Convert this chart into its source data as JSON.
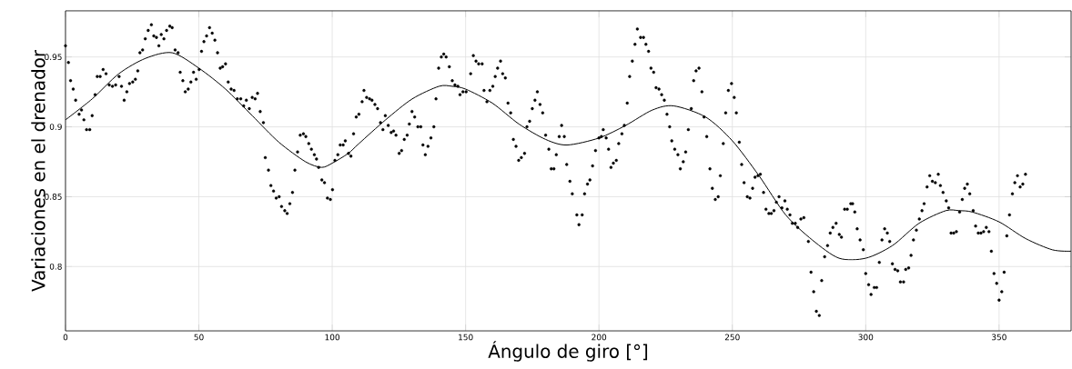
{
  "chart_data": {
    "type": "scatter",
    "xlabel": "Ángulo de giro [°]",
    "ylabel": "Variaciones en el drenador",
    "xlim": [
      0,
      377
    ],
    "ylim": [
      0.754,
      0.983
    ],
    "xticks": [
      0,
      50,
      100,
      150,
      200,
      250,
      300,
      350
    ],
    "yticks": [
      0.8,
      0.85,
      0.9,
      0.95
    ],
    "grid": true,
    "marker": "circle",
    "series": [
      {
        "color": "#000000",
        "x": [
          0,
          1.1,
          1.9,
          2.9,
          3.8,
          5.1,
          6,
          6.9,
          7.9,
          9.1,
          10,
          11.1,
          11.9,
          13,
          14.1,
          15.2,
          16.4,
          17.6,
          18.8,
          20.1,
          21,
          22,
          23,
          24,
          25.2,
          26.2,
          27.1,
          27.9,
          28.9,
          29.9,
          31,
          32.2,
          33.1,
          34.1,
          35,
          35.9,
          36.9,
          37.9,
          39.1,
          40,
          41.1,
          42.2,
          43,
          44,
          44.9,
          46,
          47,
          48,
          49,
          50.1,
          51,
          51.9,
          52.9,
          54,
          55,
          56,
          57,
          58,
          58.9,
          60,
          61,
          62.1,
          63.2,
          64.4,
          65.7,
          66.8,
          67.8,
          68.9,
          70,
          71.1,
          72,
          73,
          74.2,
          74.9,
          76.1,
          77,
          78,
          79,
          80.1,
          81,
          82.2,
          83.1,
          84.1,
          85.1,
          86,
          87,
          88,
          89.2,
          90.1,
          91.2,
          92.2,
          93.3,
          94.1,
          94.9,
          96.1,
          97.1,
          98.2,
          99.3,
          100.1,
          101,
          102.1,
          103,
          104.1,
          104.9,
          106.1,
          107,
          108,
          109,
          110,
          111.2,
          111.9,
          112.9,
          114,
          114.9,
          116,
          117,
          118.1,
          119,
          119.9,
          121,
          122.1,
          123,
          123.9,
          125.1,
          126,
          127,
          128.1,
          128.9,
          129.9,
          130.9,
          132.1,
          133.2,
          134,
          134.9,
          135.9,
          137,
          138.1,
          138.9,
          139.9,
          140.9,
          141.8,
          142.7,
          143.9,
          145,
          146,
          147.1,
          147.9,
          149,
          150.2,
          151.9,
          152.9,
          153.9,
          154.9,
          156.2,
          156.9,
          158,
          159.1,
          160.2,
          161.1,
          162,
          163.1,
          163.9,
          164.9,
          165.9,
          166.9,
          167.9,
          168.9,
          169.9,
          170.9,
          172.1,
          173,
          174,
          175,
          176,
          176.9,
          177.9,
          178.9,
          180,
          181.2,
          182.1,
          183.1,
          184,
          185.1,
          186,
          187,
          187.9,
          189.1,
          190,
          191.7,
          192.5,
          193.7,
          194.6,
          195.7,
          196.6,
          197.6,
          198.7,
          200,
          200.9,
          201.6,
          202.7,
          203.6,
          204.5,
          205.4,
          206.5,
          207.4,
          208.6,
          209.5,
          210.6,
          211.5,
          212.5,
          213.5,
          214.4,
          215.6,
          216.7,
          217.6,
          218.6,
          219.5,
          220.5,
          221.4,
          222.5,
          223.5,
          224.5,
          225.5,
          226.5,
          227.3,
          228.4,
          229.6,
          230.5,
          231.6,
          232.5,
          233.5,
          234.6,
          235.5,
          236.4,
          237.5,
          238.6,
          239.4,
          240.4,
          241.6,
          242.5,
          243.6,
          244.7,
          245.5,
          246.6,
          247.5,
          248.5,
          249.7,
          250.7,
          251.5,
          252.6,
          253.5,
          254.4,
          255.6,
          256.6,
          257.6,
          258.5,
          259.6,
          260.5,
          261.7,
          262.6,
          263.7,
          264.6,
          265.6,
          266.5,
          267.5,
          268.6,
          269.7,
          270.6,
          271.6,
          272.5,
          273.6,
          274.5,
          275.7,
          276.8,
          278.5,
          279.5,
          280.5,
          281.5,
          282.6,
          283.5,
          284.6,
          285.7,
          286.7,
          287.7,
          288.9,
          290.1,
          290.9,
          292.1,
          293.1,
          294.4,
          295.1,
          295.9,
          296.8,
          297.9,
          299.1,
          300,
          301.1,
          302,
          303.2,
          304.1,
          305.1,
          306.1,
          307.1,
          308.1,
          309,
          310,
          311,
          312,
          313,
          314.2,
          315,
          316.1,
          317,
          317.9,
          319,
          320.1,
          321.1,
          321.9,
          323,
          324,
          325,
          326.1,
          327.2,
          328,
          329,
          330.2,
          331.1,
          332,
          333,
          334,
          335.2,
          336.2,
          337.1,
          338.1,
          339,
          340.3,
          341.2,
          342.2,
          343.2,
          344.2,
          345.2,
          346.2,
          347.1,
          348.1,
          349.1,
          350,
          351,
          351.9,
          352.9,
          353.9,
          355,
          355.9,
          356.9,
          357.9,
          358.9,
          359.9
        ],
        "values": [
          0.958,
          0.946,
          0.933,
          0.927,
          0.919,
          0.909,
          0.912,
          0.905,
          0.898,
          0.898,
          0.908,
          0.923,
          0.936,
          0.936,
          0.941,
          0.938,
          0.93,
          0.929,
          0.93,
          0.936,
          0.929,
          0.919,
          0.925,
          0.931,
          0.932,
          0.934,
          0.94,
          0.953,
          0.955,
          0.963,
          0.969,
          0.973,
          0.965,
          0.964,
          0.958,
          0.966,
          0.963,
          0.969,
          0.972,
          0.971,
          0.955,
          0.953,
          0.939,
          0.933,
          0.925,
          0.927,
          0.932,
          0.939,
          0.934,
          0.941,
          0.954,
          0.961,
          0.965,
          0.971,
          0.967,
          0.962,
          0.953,
          0.942,
          0.943,
          0.945,
          0.932,
          0.927,
          0.926,
          0.92,
          0.92,
          0.915,
          0.919,
          0.913,
          0.921,
          0.92,
          0.924,
          0.911,
          0.903,
          0.878,
          0.869,
          0.858,
          0.854,
          0.849,
          0.85,
          0.843,
          0.84,
          0.838,
          0.845,
          0.853,
          0.869,
          0.882,
          0.894,
          0.895,
          0.893,
          0.888,
          0.884,
          0.88,
          0.877,
          0.871,
          0.862,
          0.86,
          0.849,
          0.848,
          0.855,
          0.876,
          0.88,
          0.887,
          0.887,
          0.89,
          0.881,
          0.879,
          0.895,
          0.907,
          0.909,
          0.918,
          0.926,
          0.921,
          0.92,
          0.919,
          0.916,
          0.913,
          0.903,
          0.898,
          0.908,
          0.901,
          0.896,
          0.897,
          0.894,
          0.881,
          0.883,
          0.891,
          0.894,
          0.902,
          0.911,
          0.907,
          0.9,
          0.9,
          0.887,
          0.88,
          0.886,
          0.892,
          0.9,
          0.92,
          0.942,
          0.95,
          0.952,
          0.95,
          0.943,
          0.933,
          0.93,
          0.929,
          0.923,
          0.925,
          0.925,
          0.938,
          0.951,
          0.947,
          0.945,
          0.945,
          0.926,
          0.918,
          0.926,
          0.929,
          0.936,
          0.942,
          0.947,
          0.938,
          0.935,
          0.917,
          0.91,
          0.891,
          0.886,
          0.876,
          0.878,
          0.881,
          0.9,
          0.904,
          0.913,
          0.919,
          0.925,
          0.916,
          0.91,
          0.894,
          0.884,
          0.87,
          0.87,
          0.88,
          0.893,
          0.901,
          0.893,
          0.873,
          0.861,
          0.852,
          0.837,
          0.83,
          0.837,
          0.852,
          0.859,
          0.862,
          0.872,
          0.883,
          0.892,
          0.893,
          0.898,
          0.892,
          0.884,
          0.871,
          0.874,
          0.876,
          0.888,
          0.895,
          0.901,
          0.917,
          0.936,
          0.947,
          0.959,
          0.97,
          0.964,
          0.964,
          0.959,
          0.954,
          0.942,
          0.939,
          0.928,
          0.927,
          0.923,
          0.919,
          0.909,
          0.9,
          0.89,
          0.884,
          0.88,
          0.87,
          0.875,
          0.882,
          0.898,
          0.913,
          0.933,
          0.94,
          0.942,
          0.925,
          0.907,
          0.893,
          0.87,
          0.856,
          0.848,
          0.85,
          0.865,
          0.888,
          0.91,
          0.926,
          0.931,
          0.921,
          0.91,
          0.889,
          0.873,
          0.86,
          0.85,
          0.849,
          0.856,
          0.864,
          0.865,
          0.866,
          0.853,
          0.841,
          0.838,
          0.838,
          0.84,
          0.846,
          0.85,
          0.842,
          0.847,
          0.841,
          0.837,
          0.831,
          0.831,
          0.828,
          0.834,
          0.835,
          0.818,
          0.796,
          0.782,
          0.768,
          0.765,
          0.79,
          0.807,
          0.815,
          0.824,
          0.828,
          0.831,
          0.823,
          0.821,
          0.841,
          0.841,
          0.845,
          0.845,
          0.839,
          0.827,
          0.819,
          0.812,
          0.795,
          0.787,
          0.78,
          0.785,
          0.785,
          0.803,
          0.819,
          0.827,
          0.824,
          0.818,
          0.802,
          0.798,
          0.797,
          0.789,
          0.789,
          0.798,
          0.799,
          0.808,
          0.819,
          0.826,
          0.834,
          0.84,
          0.845,
          0.857,
          0.865,
          0.861,
          0.86,
          0.866,
          0.858,
          0.853,
          0.847,
          0.842,
          0.824,
          0.824,
          0.825,
          0.839,
          0.848,
          0.856,
          0.859,
          0.852,
          0.84,
          0.829,
          0.824,
          0.824,
          0.825,
          0.828,
          0.825,
          0.811,
          0.795,
          0.788,
          0.776,
          0.782,
          0.796,
          0.822,
          0.837,
          0.852,
          0.86,
          0.865,
          0.857,
          0.859,
          0.866
        ]
      },
      {
        "type": "line",
        "color": "#000000",
        "marker": "none",
        "line_style": "solid",
        "x": [
          0,
          10,
          20,
          30,
          40,
          50,
          60,
          70,
          80,
          90,
          96,
          100,
          106,
          110,
          120,
          130,
          140,
          145,
          150,
          160,
          170,
          180,
          188,
          200,
          210,
          220,
          228,
          240,
          250,
          260,
          270,
          280,
          290,
          300,
          310,
          320,
          330,
          335,
          340,
          350,
          360,
          370,
          377
        ],
        "values": [
          0.905,
          0.92,
          0.938,
          0.949,
          0.953,
          0.942,
          0.927,
          0.908,
          0.889,
          0.875,
          0.871,
          0.874,
          0.881,
          0.888,
          0.905,
          0.92,
          0.929,
          0.929,
          0.927,
          0.917,
          0.902,
          0.891,
          0.887,
          0.892,
          0.901,
          0.912,
          0.915,
          0.907,
          0.89,
          0.865,
          0.837,
          0.819,
          0.806,
          0.806,
          0.815,
          0.831,
          0.84,
          0.84,
          0.839,
          0.832,
          0.82,
          0.812,
          0.811
        ]
      }
    ]
  }
}
